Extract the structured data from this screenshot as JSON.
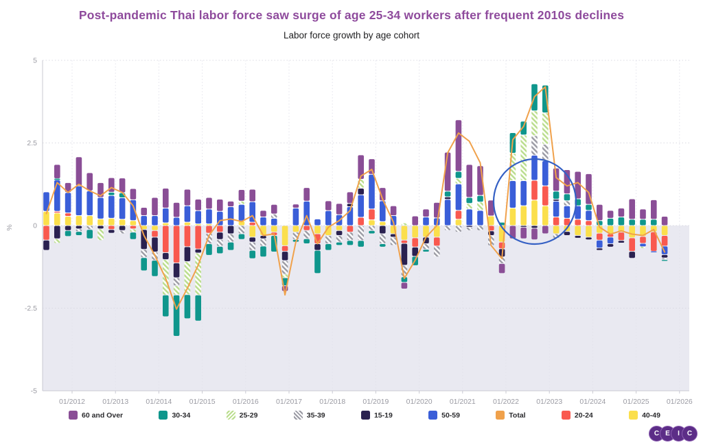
{
  "header": {
    "title": "Post-pandemic Thai labor force saw surge of age 25-34 workers after frequent 2010s declines",
    "subtitle": "Labor force growth by age cohort"
  },
  "colors": {
    "title": "#8e4a9c",
    "60 and Over": "#8a4e96",
    "30-34": "#0f968c",
    "25-29_stripe": "#b9dd8d",
    "35-39_stripe": "#9b9ba4",
    "15-19": "#2a2150",
    "50-59": "#3a5ed8",
    "Total": "#f0a14b",
    "20-24": "#f9594f",
    "40-49": "#fbdf4c",
    "below_zero_shade": "#e9e9f1",
    "grid": "#d9d9e2",
    "axis_text": "#9a9aa2",
    "annotation_circle": "#3560c4"
  },
  "legend": [
    {
      "label": "60 and Over",
      "color": "#8a4e96"
    },
    {
      "label": "30-34",
      "color": "#0f968c"
    },
    {
      "label": "25-29",
      "hatch": "green"
    },
    {
      "label": "35-39",
      "hatch": "gray"
    },
    {
      "label": "15-19",
      "color": "#2a2150"
    },
    {
      "label": "50-59",
      "color": "#3a5ed8"
    },
    {
      "label": "Total",
      "color": "#f0a14b"
    },
    {
      "label": "20-24",
      "color": "#f9594f"
    },
    {
      "label": "40-49",
      "color": "#fbdf4c"
    }
  ],
  "logo": {
    "letters": [
      "C",
      "E",
      "I",
      "C"
    ]
  },
  "chart_data": {
    "type": "bar",
    "variant": "stacked-bar-with-line",
    "title": "Post-pandemic Thai labor force saw surge of age 25-34 workers after frequent 2010s declines",
    "subtitle": "Labor force growth by age cohort",
    "xlabel": "",
    "ylabel": "%",
    "ylim": [
      -5,
      5
    ],
    "y_ticks": [
      "5",
      "2.5",
      "0",
      "-2.5",
      "-5"
    ],
    "y_tick_values": [
      5,
      2.5,
      0,
      -2.5,
      -5
    ],
    "x_ticks": [
      "01/2012",
      "01/2013",
      "01/2014",
      "01/2015",
      "01/2016",
      "01/2017",
      "01/2018",
      "01/2019",
      "01/2020",
      "01/2021",
      "01/2022",
      "01/2023",
      "01/2024",
      "01/2025",
      "01/2026"
    ],
    "grid": "dotted",
    "legend_position": "bottom",
    "annotation": {
      "type": "ellipse-highlight",
      "around": "Q4 2021 - Q2 2023 surge",
      "color": "#3560c4"
    },
    "periods": [
      "Q3 2011",
      "Q4 2011",
      "Q1 2012",
      "Q2 2012",
      "Q3 2012",
      "Q4 2012",
      "Q1 2013",
      "Q2 2013",
      "Q3 2013",
      "Q4 2013",
      "Q1 2014",
      "Q2 2014",
      "Q3 2014",
      "Q4 2014",
      "Q1 2015",
      "Q2 2015",
      "Q3 2015",
      "Q4 2015",
      "Q1 2016",
      "Q2 2016",
      "Q3 2016",
      "Q4 2016",
      "Q1 2017",
      "Q2 2017",
      "Q3 2017",
      "Q4 2017",
      "Q1 2018",
      "Q2 2018",
      "Q3 2018",
      "Q4 2018",
      "Q1 2019",
      "Q2 2019",
      "Q3 2019",
      "Q4 2019",
      "Q1 2020",
      "Q2 2020",
      "Q3 2020",
      "Q4 2020",
      "Q1 2021",
      "Q2 2021",
      "Q3 2021",
      "Q4 2021",
      "Q1 2022",
      "Q2 2022",
      "Q3 2022",
      "Q4 2022",
      "Q1 2023",
      "Q2 2023",
      "Q3 2023",
      "Q4 2023",
      "Q1 2024",
      "Q2 2024",
      "Q3 2024",
      "Q4 2024",
      "Q1 2025",
      "Q2 2025",
      "Q3 2025",
      "Q4 2025"
    ],
    "series": [
      {
        "name": "40-49",
        "fill": "#fbdf4c",
        "values": [
          0.43,
          0.38,
          0.28,
          0.3,
          0.3,
          0.2,
          0.22,
          0.19,
          0.15,
          -0.12,
          -0.15,
          0.08,
          0,
          0.1,
          0.05,
          0.05,
          0,
          0,
          0.14,
          -0.35,
          -0.3,
          -0.2,
          -0.61,
          -0.2,
          0,
          -0.25,
          -0.3,
          -0.15,
          0,
          0,
          0.17,
          0.12,
          -0.25,
          -0.44,
          -0.37,
          -0.35,
          -0.35,
          0,
          0.19,
          0,
          0,
          0.29,
          -0.5,
          0.53,
          0.6,
          0.77,
          0.6,
          -0.25,
          -0.18,
          -0.3,
          -0.35,
          -0.23,
          -0.25,
          -0.2,
          -0.37,
          -0.33,
          -0.19,
          -0.3
        ]
      },
      {
        "name": "20-24",
        "fill": "#f9594f",
        "values": [
          -0.44,
          0.05,
          0.1,
          0,
          0,
          0,
          -0.12,
          0,
          -0.1,
          0,
          -0.2,
          -0.82,
          -1.13,
          -0.64,
          -0.71,
          -0.23,
          -0.2,
          0,
          0,
          0.1,
          0,
          -0.1,
          -0.17,
          0,
          -0.15,
          -0.3,
          0,
          0,
          -0.2,
          0.25,
          0.33,
          0,
          0,
          -0.1,
          -0.28,
          0,
          -0.27,
          0,
          0.27,
          0,
          0,
          -0.16,
          -0.2,
          0,
          0,
          0.6,
          0.6,
          0.26,
          0.22,
          0.19,
          0.15,
          -0.21,
          -0.1,
          -0.25,
          -0.41,
          -0.21,
          -0.59,
          -0.32
        ]
      },
      {
        "name": "50-59",
        "fill": "#3a5ed8",
        "values": [
          0.59,
          0.95,
          0.62,
          0.9,
          0.75,
          0.65,
          0.69,
          0.65,
          0.63,
          0.3,
          0.3,
          0.45,
          0.25,
          0.5,
          0.4,
          0.45,
          0.43,
          0.57,
          0.5,
          0.62,
          0.26,
          0.22,
          0,
          0.53,
          0.74,
          0.2,
          0.45,
          0.33,
          0.57,
          0.68,
          1.05,
          0.63,
          0.3,
          0,
          0,
          0.26,
          0.23,
          0.79,
          0.8,
          0.5,
          0.46,
          0,
          0,
          0.83,
          0.76,
          0.76,
          0.76,
          0.48,
          0.38,
          0.41,
          0.31,
          -0.24,
          -0.2,
          0,
          0,
          -0.1,
          -0.03,
          -0.26
        ]
      },
      {
        "name": "15-19",
        "fill": "#2a2150",
        "values": [
          -0.31,
          -0.4,
          -0.15,
          -0.1,
          0,
          -0.1,
          -0.11,
          -0.15,
          0,
          -0.6,
          -0.45,
          -0.21,
          -0.45,
          -0.45,
          -0.12,
          0,
          -0.22,
          -0.25,
          0,
          -0.15,
          -0.1,
          0,
          -0.28,
          0,
          0,
          -0.2,
          0,
          -0.15,
          0.1,
          0.2,
          0,
          -0.25,
          -0.1,
          -0.66,
          -0.28,
          -0.2,
          0,
          0.08,
          0,
          -0.05,
          0,
          -0.14,
          -0.25,
          0,
          -0.05,
          -0.08,
          0,
          0.06,
          -0.12,
          -0.08,
          -0.08,
          -0.07,
          -0.1,
          -0.08,
          -0.21,
          0,
          0,
          -0.1
        ]
      },
      {
        "name": "35-39",
        "fill": "hatch-gray",
        "values": [
          0,
          0,
          0,
          -0.08,
          -0.12,
          0,
          0,
          -0.1,
          0,
          -0.25,
          -0.25,
          0,
          -0.24,
          0,
          0,
          -0.32,
          -0.21,
          -0.25,
          -0.25,
          -0.25,
          -0.22,
          0.13,
          -0.41,
          -0.22,
          -0.25,
          0,
          -0.25,
          -0.2,
          -0.25,
          -0.45,
          -0.15,
          -0.3,
          -0.25,
          -0.35,
          0,
          -0.17,
          -0.33,
          -0.15,
          -0.2,
          -0.1,
          -0.15,
          -0.31,
          -0.2,
          0,
          0,
          0.59,
          0.5,
          -0.15,
          0.15,
          0,
          0,
          0,
          0,
          0,
          0,
          0,
          0,
          -0.05
        ]
      },
      {
        "name": "25-29",
        "fill": "hatch-green",
        "values": [
          0,
          -0.14,
          0,
          0,
          0,
          -0.35,
          0,
          0,
          -0.1,
          0,
          0,
          -1.07,
          -0.28,
          -1.0,
          -1.27,
          0,
          0,
          0,
          0.1,
          0,
          0,
          0,
          -0.11,
          0,
          0,
          0,
          0,
          0,
          0,
          0.27,
          0,
          0,
          0,
          0.08,
          0,
          0,
          0,
          0,
          0.17,
          0.17,
          0.25,
          0,
          0,
          0.83,
          1.38,
          0.75,
          0.95,
          0,
          0,
          0,
          0,
          0,
          0,
          0,
          0,
          -0.04,
          0,
          0
        ]
      },
      {
        "name": "30-34",
        "fill": "#0f968c",
        "values": [
          0,
          0.04,
          -0.18,
          -0.12,
          -0.28,
          0,
          0.1,
          0.15,
          -0.22,
          -0.4,
          -0.49,
          -0.66,
          -1.25,
          -0.73,
          -0.79,
          -0.35,
          -0.22,
          -0.25,
          -0.17,
          -0.25,
          -0.33,
          -0.5,
          -0.24,
          -0.08,
          -0.15,
          -0.7,
          -0.2,
          -0.1,
          -0.15,
          -0.2,
          -0.1,
          -0.1,
          0,
          -0.17,
          -0.28,
          -0.08,
          0,
          0.17,
          0.21,
          0.18,
          0.2,
          0,
          0.1,
          0.62,
          0.42,
          0.82,
          0.84,
          0.24,
          0.21,
          0.21,
          0.18,
          0.15,
          0.22,
          0.26,
          0.19,
          0.19,
          0.19,
          -0.05
        ]
      },
      {
        "name": "60 and Over",
        "fill": "#8a4e96",
        "values": [
          0,
          0.43,
          0.3,
          0.88,
          0.55,
          0.45,
          0.44,
          0.45,
          0.34,
          0.25,
          0.55,
          0.6,
          0.45,
          0.5,
          0.35,
          0.35,
          0.37,
          0.17,
          0.35,
          0.38,
          0.2,
          0.29,
          -0.17,
          0.12,
          0.41,
          0,
          0.3,
          0.34,
          0.35,
          0.74,
          0.47,
          0.4,
          0.3,
          -0.2,
          0.29,
          0.24,
          0.47,
          1.18,
          1.56,
          1.0,
          0.9,
          0.48,
          -0.3,
          -0.4,
          -0.35,
          -0.35,
          -0.25,
          0.7,
          0.73,
          0.83,
          0.93,
          0.49,
          0.24,
          0.27,
          0.62,
          0.31,
          0.59,
          0.28
        ]
      }
    ],
    "total_line": {
      "name": "Total",
      "color": "#f0a14b",
      "values": [
        0.36,
        1.3,
        1.0,
        1.25,
        1.05,
        0.9,
        1.15,
        1.0,
        0.6,
        -0.3,
        -0.9,
        -1.6,
        -2.53,
        -1.9,
        -1.2,
        -0.3,
        0.15,
        0.2,
        0.12,
        0.3,
        -0.3,
        -0.25,
        -2.1,
        -0.5,
        0.3,
        -0.55,
        -0.05,
        0.15,
        0.45,
        1.5,
        1.7,
        0.8,
        0.1,
        -1.6,
        -1.05,
        -0.35,
        0.0,
        2.2,
        2.8,
        2.55,
        1.9,
        -0.6,
        -1.0,
        2.6,
        3.0,
        3.9,
        4.2,
        1.45,
        1.2,
        1.3,
        1.0,
        -0.05,
        -0.26,
        -0.16,
        -0.26,
        -0.3,
        -0.12,
        -0.8
      ]
    }
  }
}
